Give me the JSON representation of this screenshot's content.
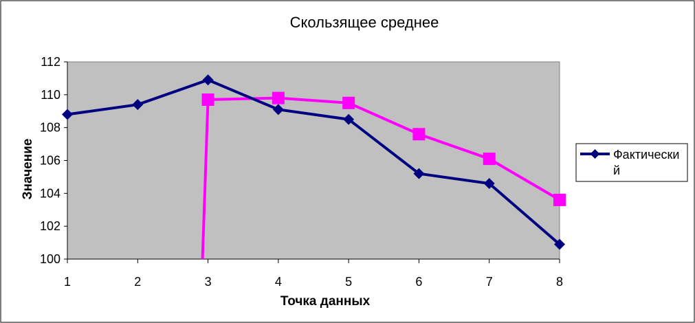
{
  "chart_data": {
    "type": "line",
    "title": "Скользящее среднее",
    "xlabel": "Точка данных",
    "ylabel": "Значение",
    "categories": [
      "1",
      "2",
      "3",
      "4",
      "5",
      "6",
      "7",
      "8"
    ],
    "ylim": [
      100,
      112
    ],
    "yticks": [
      "100",
      "102",
      "104",
      "106",
      "108",
      "110",
      "112"
    ],
    "grid": false,
    "plot_background": "#C0C0C0",
    "legend": {
      "position": "right",
      "entries": [
        "Фактически",
        "й"
      ]
    },
    "series": [
      {
        "name": "Фактический",
        "color": "#000080",
        "marker": "diamond",
        "values": [
          108.8,
          109.4,
          110.9,
          109.1,
          108.5,
          105.2,
          104.6,
          100.9
        ]
      },
      {
        "color": "#FF00FF",
        "marker": "square",
        "values": [
          null,
          null,
          109.7,
          109.8,
          109.5,
          107.6,
          106.1,
          103.6
        ],
        "drop_to_axis_before_first_point": true
      }
    ]
  }
}
